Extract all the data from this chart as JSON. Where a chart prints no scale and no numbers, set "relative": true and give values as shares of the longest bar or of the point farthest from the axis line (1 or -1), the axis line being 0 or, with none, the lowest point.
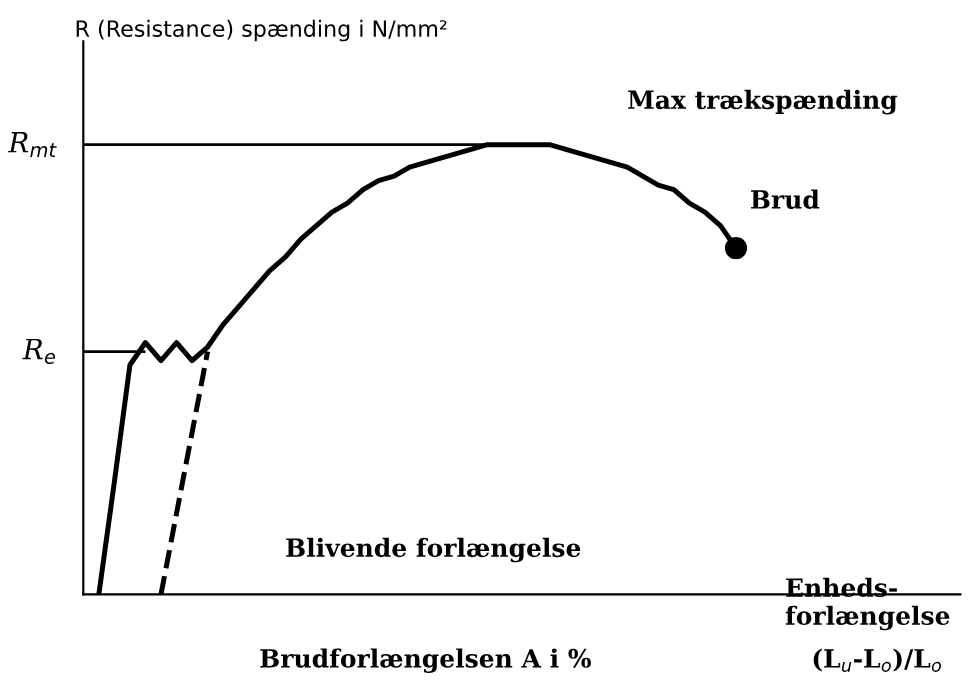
{
  "chart_data": {
    "type": "line",
    "relative": true,
    "ylabel": "R (Resistance) spænding i N/mm²",
    "xlabel": "Enheds-\nforlængelse",
    "categories": [
      null,
      null,
      null,
      null,
      null,
      null,
      null,
      null,
      null,
      null,
      null,
      null,
      null,
      null,
      null,
      null,
      null,
      null,
      null,
      null,
      null,
      null,
      null,
      null,
      null,
      null,
      null,
      null,
      null,
      null,
      null,
      null,
      null,
      null,
      null,
      null,
      null,
      null,
      null,
      null,
      null,
      null
    ],
    "series": [
      {
        "color": "#000000",
        "line_style": "solid",
        "marker": "none",
        "values": [
          0,
          0.25,
          0.51,
          0.56,
          0.52,
          0.56,
          0.52,
          0.55,
          0.6,
          0.64,
          0.68,
          0.72,
          0.75,
          0.79,
          0.82,
          0.85,
          0.87,
          0.9,
          0.92,
          0.93,
          0.95,
          0.96,
          0.97,
          0.98,
          0.99,
          1.0,
          1.0,
          1.0,
          1.0,
          1.0,
          0.99,
          0.98,
          0.97,
          0.96,
          0.95,
          0.93,
          0.91,
          0.9,
          0.87,
          0.85,
          0.82,
          0.77
        ]
      },
      {
        "color": "#000000",
        "line_style": "dashed",
        "marker": "none",
        "values": [
          null,
          null,
          null,
          null,
          0,
          0.18,
          0.36,
          0.54,
          null,
          null,
          null,
          null,
          null,
          null,
          null,
          null,
          null,
          null,
          null,
          null,
          null,
          null,
          null,
          null,
          null,
          null,
          null,
          null,
          null,
          null,
          null,
          null,
          null,
          null,
          null,
          null,
          null,
          null,
          null,
          null,
          null,
          null
        ]
      }
    ],
    "ref_lines": [
      {
        "axis": "y",
        "value": 1.0,
        "label": "R$_{mt}$",
        "color": "#000000",
        "line_style": "solid"
      },
      {
        "axis": "y",
        "value": 0.54,
        "label": "R$_{e}$",
        "color": "#000000",
        "line_style": "solid"
      }
    ],
    "annotations": [
      "Max trækspænding",
      "Brud",
      "Blivende forlængelse",
      "Brudforlængelsen A i %",
      "(L$_{u}$-L$_{o}$)/L$_{o}$"
    ],
    "legend": false,
    "grid": false
  }
}
